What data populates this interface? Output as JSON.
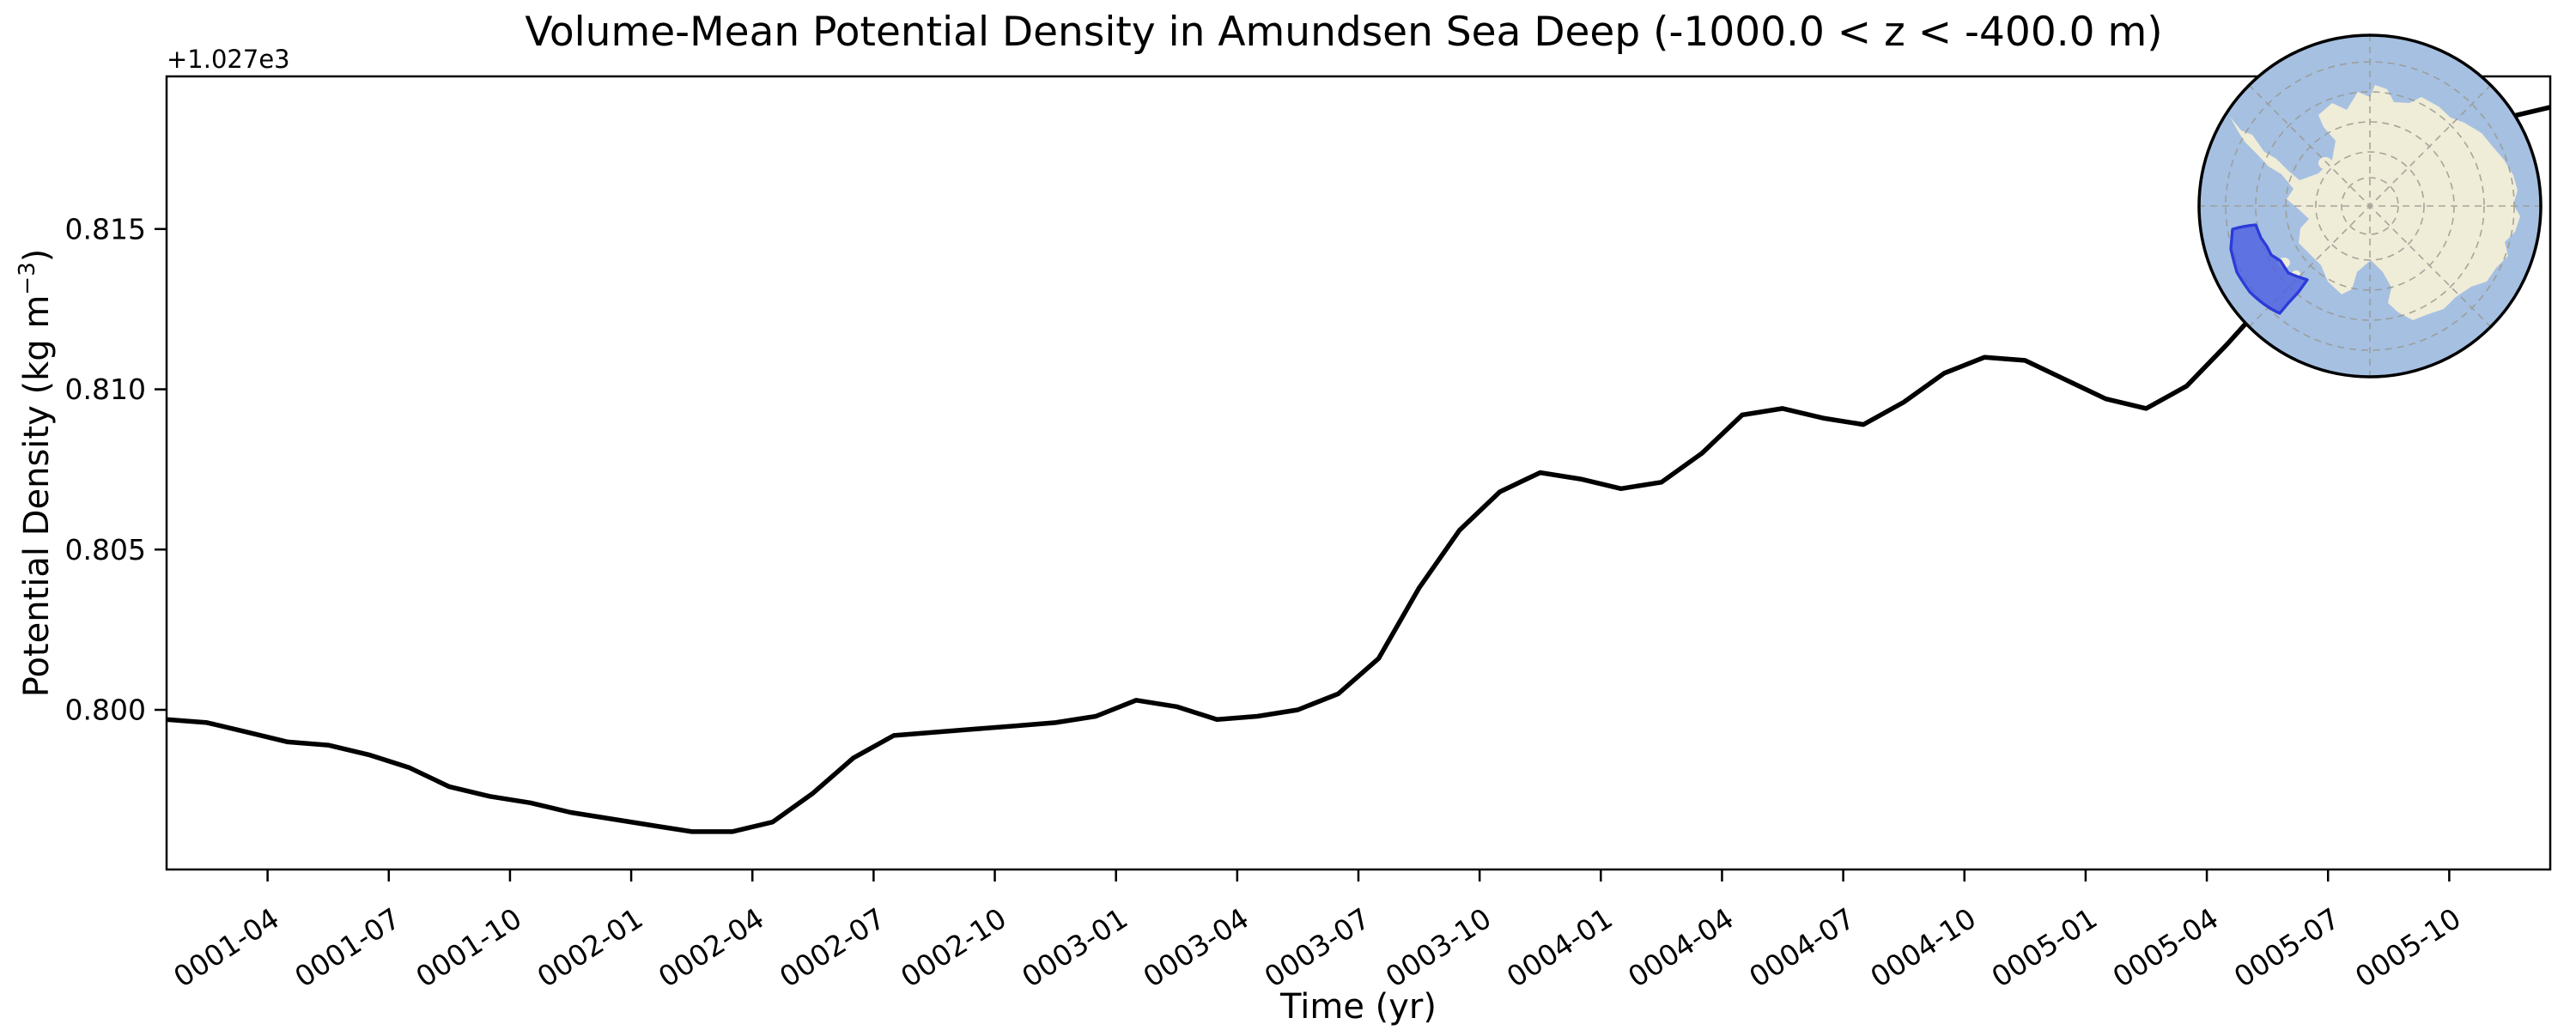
{
  "figure": {
    "background": "#ffffff"
  },
  "chart_data": {
    "type": "line",
    "title": "Volume-Mean Potential Density in Amundsen Sea Deep (-1000.0 < z < -400.0 m)",
    "xlabel": "Time (yr)",
    "ylabel": "Potential Density (kg m⁻³)",
    "ylabel_parts": {
      "prefix": "Potential Density (kg m",
      "superscript": "−3",
      "suffix": ")"
    },
    "y_offset_text": "+1.027e3",
    "legend": "none",
    "grid": false,
    "line_color": "#000000",
    "line_width": 5.5,
    "x": [
      "0001-01",
      "0001-02",
      "0001-03",
      "0001-04",
      "0001-05",
      "0001-06",
      "0001-07",
      "0001-08",
      "0001-09",
      "0001-10",
      "0001-11",
      "0001-12",
      "0002-01",
      "0002-02",
      "0002-03",
      "0002-04",
      "0002-05",
      "0002-06",
      "0002-07",
      "0002-08",
      "0002-09",
      "0002-10",
      "0002-11",
      "0002-12",
      "0003-01",
      "0003-02",
      "0003-03",
      "0003-04",
      "0003-05",
      "0003-06",
      "0003-07",
      "0003-08",
      "0003-09",
      "0003-10",
      "0003-11",
      "0003-12",
      "0004-01",
      "0004-02",
      "0004-03",
      "0004-04",
      "0004-05",
      "0004-06",
      "0004-07",
      "0004-08",
      "0004-09",
      "0004-10",
      "0004-11",
      "0004-12",
      "0005-01",
      "0005-02",
      "0005-03",
      "0005-04",
      "0005-05",
      "0005-06",
      "0005-07",
      "0005-08",
      "0005-09",
      "0005-10",
      "0005-11",
      "0005-12"
    ],
    "values": [
      0.7997,
      0.7996,
      0.7993,
      0.799,
      0.7989,
      0.7986,
      0.7982,
      0.7976,
      0.7973,
      0.7971,
      0.7968,
      0.7966,
      0.7964,
      0.7962,
      0.7962,
      0.7965,
      0.7974,
      0.7985,
      0.7992,
      0.7993,
      0.7994,
      0.7995,
      0.7996,
      0.7998,
      0.8003,
      0.8001,
      0.7997,
      0.7998,
      0.8,
      0.8005,
      0.8016,
      0.8038,
      0.8056,
      0.8068,
      0.8074,
      0.8072,
      0.8069,
      0.8071,
      0.808,
      0.8092,
      0.8094,
      0.8091,
      0.8089,
      0.8096,
      0.8105,
      0.811,
      0.8109,
      0.8103,
      0.8097,
      0.8094,
      0.8101,
      0.8114,
      0.8128,
      0.8142,
      0.8155,
      0.8166,
      0.8175,
      0.8181,
      0.8185,
      0.8188
    ],
    "value_offset": 1027.0,
    "ylim": [
      0.79502,
      0.81976
    ],
    "xlim": [
      0,
      59
    ],
    "ytick_values": [
      0.8,
      0.805,
      0.81,
      0.815
    ],
    "ytick_labels": [
      "0.800",
      "0.805",
      "0.810",
      "0.815"
    ],
    "xtick_positions": [
      2.5,
      5.5,
      8.5,
      11.5,
      14.5,
      17.5,
      20.5,
      23.5,
      26.5,
      29.5,
      32.5,
      35.5,
      38.5,
      41.5,
      44.5,
      47.5,
      50.5,
      53.5,
      56.5
    ],
    "xtick_labels": [
      "0001-04",
      "0001-07",
      "0001-10",
      "0002-01",
      "0002-04",
      "0002-07",
      "0002-10",
      "0003-01",
      "0003-04",
      "0003-07",
      "0003-10",
      "0004-01",
      "0004-04",
      "0004-07",
      "0004-10",
      "0005-01",
      "0005-04",
      "0005-07",
      "0005-10"
    ],
    "xtick_rotation_deg": -33
  },
  "inset_map": {
    "ocean_color": "#a6c0e2",
    "land_color": "#efecd8",
    "graticule_color": "#99998f",
    "region_fill": "#4c5ce0",
    "region_border": "#2c3cd8",
    "border_color": "#000000"
  }
}
